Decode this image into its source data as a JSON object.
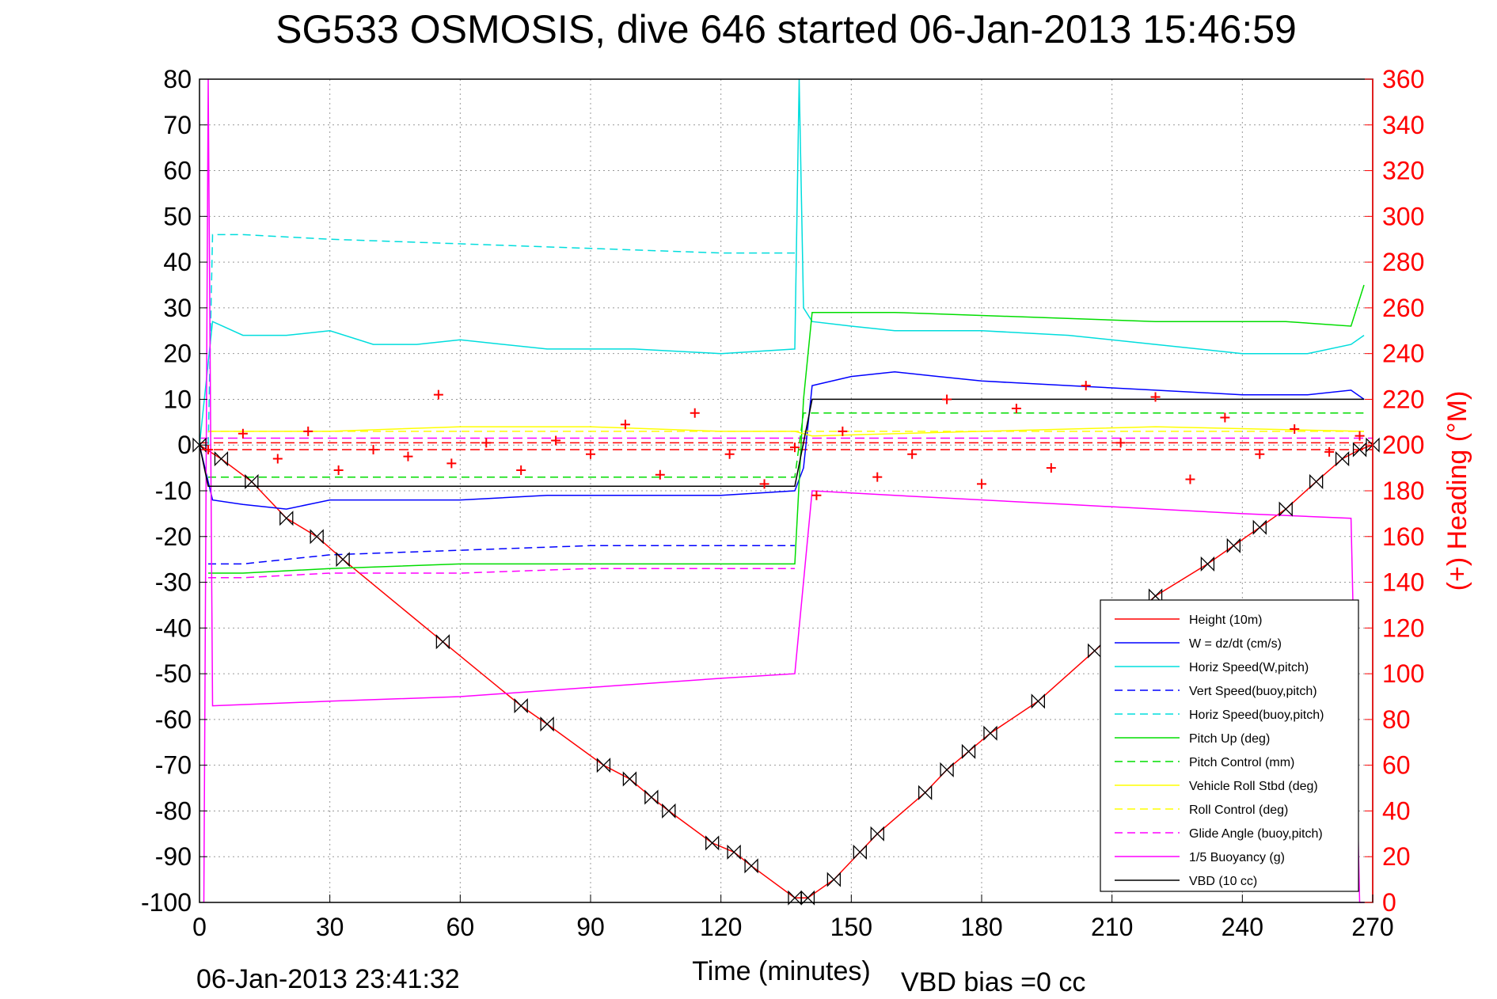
{
  "chart_data": {
    "type": "line",
    "title": "SG533 OSMOSIS, dive 646 started 06-Jan-2013 15:46:59",
    "xlabel": "Time (minutes)",
    "ylabel_right": "(+) Heading (°M)",
    "footer_left": "06-Jan-2013 23:41:32",
    "footer_right": "VBD bias =0 cc",
    "xlim": [
      0,
      270
    ],
    "ylim": [
      -100,
      80
    ],
    "ylim_right": [
      0,
      360
    ],
    "x_ticks": [
      0,
      30,
      60,
      90,
      120,
      150,
      180,
      210,
      240,
      270
    ],
    "y_ticks": [
      -100,
      -90,
      -80,
      -70,
      -60,
      -50,
      -40,
      -30,
      -20,
      -10,
      0,
      10,
      20,
      30,
      40,
      50,
      60,
      70,
      80
    ],
    "y_right_ticks": [
      0,
      20,
      40,
      60,
      80,
      100,
      120,
      140,
      160,
      180,
      200,
      220,
      240,
      260,
      280,
      300,
      320,
      340,
      360
    ],
    "grid": true,
    "legend_position": "bottom-right",
    "series": [
      {
        "name": "Height (10m)",
        "color": "#ff0000",
        "style": "solid",
        "marker": "bowtie",
        "x": [
          0,
          5,
          12,
          20,
          27,
          33,
          56,
          74,
          80,
          93,
          99,
          104,
          108,
          118,
          123,
          127,
          137,
          140,
          146,
          152,
          156,
          167,
          172,
          177,
          182,
          193,
          206,
          220,
          232,
          238,
          244,
          250,
          257,
          263,
          267,
          270
        ],
        "y": [
          0,
          -3,
          -8,
          -16,
          -20,
          -25,
          -43,
          -57,
          -61,
          -70,
          -73,
          -77,
          -80,
          -87,
          -89,
          -92,
          -99,
          -99,
          -95,
          -89,
          -85,
          -76,
          -71,
          -67,
          -63,
          -56,
          -45,
          -33,
          -26,
          -22,
          -18,
          -14,
          -8,
          -3,
          -1,
          0
        ]
      },
      {
        "name": "W = dz/dt (cm/s)",
        "color": "#0000ff",
        "style": "solid",
        "x": [
          0,
          3,
          10,
          20,
          30,
          40,
          60,
          80,
          100,
          120,
          137,
          139,
          141,
          150,
          160,
          170,
          180,
          200,
          220,
          240,
          255,
          265,
          268
        ],
        "y": [
          0,
          -12,
          -13,
          -14,
          -12,
          -12,
          -12,
          -11,
          -11,
          -11,
          -10,
          -5,
          13,
          15,
          16,
          15,
          14,
          13,
          12,
          11,
          11,
          12,
          10
        ]
      },
      {
        "name": "Horiz Speed(W,pitch)",
        "color": "#00dddd",
        "style": "solid",
        "x": [
          0,
          3,
          10,
          20,
          30,
          40,
          50,
          60,
          80,
          100,
          120,
          137,
          138,
          139,
          141,
          150,
          160,
          180,
          200,
          220,
          240,
          255,
          265,
          268
        ],
        "y": [
          0,
          27,
          24,
          24,
          25,
          22,
          22,
          23,
          21,
          21,
          20,
          21,
          80,
          30,
          27,
          26,
          25,
          25,
          24,
          22,
          20,
          20,
          22,
          24
        ]
      },
      {
        "name": "Vert Speed(buoy,pitch)",
        "color": "#0000ff",
        "style": "dashed",
        "x": [
          2,
          10,
          30,
          60,
          90,
          120,
          137
        ],
        "y": [
          -26,
          -26,
          -24,
          -23,
          -22,
          -22,
          -22
        ]
      },
      {
        "name": "Horiz Speed(buoy,pitch)",
        "color": "#00dddd",
        "style": "dashed",
        "x": [
          2,
          3,
          10,
          30,
          60,
          90,
          120,
          137
        ],
        "y": [
          0,
          46,
          46,
          45,
          44,
          43,
          42,
          42
        ]
      },
      {
        "name": "Pitch Up (deg)",
        "color": "#00dd00",
        "style": "solid",
        "x": [
          2,
          10,
          30,
          60,
          90,
          120,
          137,
          139,
          141,
          160,
          190,
          220,
          250,
          265,
          268
        ],
        "y": [
          -28,
          -28,
          -27,
          -26,
          -26,
          -26,
          -26,
          10,
          29,
          29,
          28,
          27,
          27,
          26,
          35
        ]
      },
      {
        "name": "Pitch Control (mm)",
        "color": "#00dd00",
        "style": "dashed",
        "x": [
          2,
          30,
          60,
          90,
          120,
          137,
          139,
          141,
          180,
          220,
          268
        ],
        "y": [
          -7,
          -7,
          -7,
          -7,
          -7,
          -7,
          7,
          7,
          7,
          7,
          7
        ]
      },
      {
        "name": "Vehicle Roll Stbd (deg)",
        "color": "#ffff00",
        "style": "solid",
        "x": [
          2,
          30,
          60,
          90,
          120,
          137,
          141,
          180,
          220,
          268
        ],
        "y": [
          3,
          3,
          4,
          4,
          3,
          3,
          2,
          3,
          4,
          3
        ]
      },
      {
        "name": "Roll Control (deg)",
        "color": "#ffff00",
        "style": "dashed",
        "x": [
          2,
          137,
          141,
          268
        ],
        "y": [
          3,
          3,
          3,
          3
        ]
      },
      {
        "name": "Glide Angle (buoy,pitch)",
        "color": "#ff00ff",
        "style": "dashed",
        "x": [
          2,
          10,
          30,
          60,
          90,
          120,
          137
        ],
        "y": [
          -29,
          -29,
          -28,
          -28,
          -27,
          -27,
          -27
        ]
      },
      {
        "name": "1/5 Buoyancy (g)",
        "color": "#ff00ff",
        "style": "solid",
        "x": [
          1,
          2,
          3,
          30,
          60,
          90,
          120,
          137,
          141,
          160,
          200,
          240,
          265,
          267,
          268
        ],
        "y": [
          -100,
          80,
          -57,
          -56,
          -55,
          -53,
          -51,
          -50,
          -10,
          -11,
          -13,
          -15,
          -16,
          -100,
          -100
        ]
      },
      {
        "name": "VBD (10 cc)",
        "color": "#000000",
        "style": "solid",
        "x": [
          0,
          2,
          3,
          137,
          141,
          268
        ],
        "y": [
          0,
          -9,
          -9,
          -9,
          10,
          10
        ]
      }
    ],
    "heading_series": {
      "name": "(+) Heading",
      "color": "#ff0000",
      "marker": "+",
      "x": [
        2,
        10,
        18,
        25,
        32,
        40,
        48,
        55,
        58,
        66,
        74,
        82,
        90,
        98,
        106,
        114,
        122,
        130,
        137,
        142,
        148,
        156,
        164,
        172,
        180,
        188,
        196,
        204,
        212,
        220,
        228,
        236,
        244,
        252,
        260,
        267
      ],
      "y": [
        198,
        205,
        194,
        206,
        189,
        198,
        195,
        222,
        192,
        201,
        189,
        202,
        196,
        209,
        187,
        214,
        196,
        183,
        199,
        178,
        206,
        186,
        196,
        220,
        183,
        216,
        190,
        226,
        201,
        221,
        185,
        212,
        196,
        207,
        197,
        204
      ]
    },
    "reference_lines": [
      {
        "color": "#ff0000",
        "style": "dashed",
        "y_right": 198
      },
      {
        "color": "#ff0000",
        "style": "dashed",
        "y_right": 201
      },
      {
        "color": "#ff00ff",
        "style": "dashed",
        "y_right": 203
      }
    ]
  }
}
